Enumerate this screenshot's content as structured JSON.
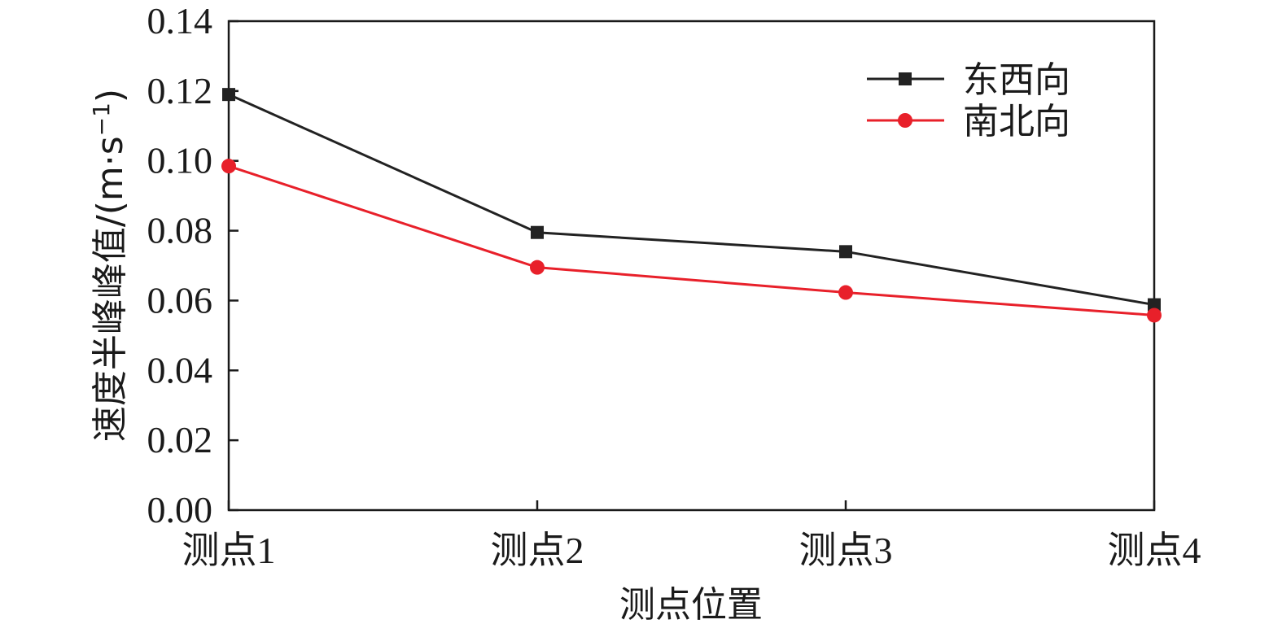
{
  "chart_data": {
    "type": "line",
    "categories": [
      "测点1",
      "测点2",
      "测点3",
      "测点4"
    ],
    "series": [
      {
        "name": "东西向",
        "values": [
          0.119,
          0.0795,
          0.074,
          0.0588
        ],
        "color": "#222222",
        "marker": "square"
      },
      {
        "name": "南北向",
        "values": [
          0.0985,
          0.0695,
          0.0623,
          0.0558
        ],
        "color": "#e8202a",
        "marker": "circle"
      }
    ],
    "xlabel": "测点位置",
    "ylabel": "速度半峰峰值/(m·s",
    "ylabel_sup": "−1",
    "ylabel_tail": ")",
    "ylim": [
      0,
      0.14
    ],
    "yticks": [
      "0.00",
      "0.02",
      "0.04",
      "0.06",
      "0.08",
      "0.10",
      "0.12",
      "0.14"
    ],
    "grid": false,
    "legend_position": "top-right"
  }
}
